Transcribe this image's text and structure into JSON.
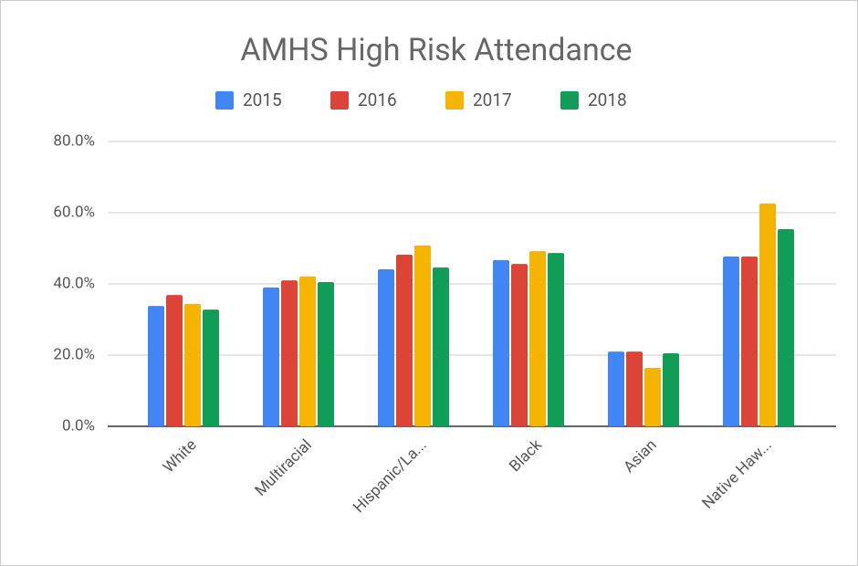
{
  "chart_data": {
    "type": "bar",
    "title": "AMHS High Risk Attendance",
    "categories": [
      "White",
      "Multiracial",
      "Hispanic/La...",
      "Black",
      "Asian",
      "Native Haw..."
    ],
    "series": [
      {
        "name": "2015",
        "color": "#4285f4",
        "values": [
          33.8,
          39.0,
          44.1,
          46.7,
          21.0,
          47.7
        ]
      },
      {
        "name": "2016",
        "color": "#db4437",
        "values": [
          36.9,
          41.0,
          48.2,
          45.6,
          21.0,
          47.7
        ]
      },
      {
        "name": "2017",
        "color": "#f4b400",
        "values": [
          34.4,
          42.1,
          50.8,
          49.2,
          16.4,
          62.6
        ]
      },
      {
        "name": "2018",
        "color": "#0f9d58",
        "values": [
          32.8,
          40.5,
          44.6,
          48.7,
          20.5,
          55.4
        ]
      }
    ],
    "ylim": [
      0,
      80
    ],
    "yticks": [
      {
        "value": 0,
        "label": "0.0%"
      },
      {
        "value": 20,
        "label": "20.0%"
      },
      {
        "value": 40,
        "label": "40.0%"
      },
      {
        "value": 60,
        "label": "60.0%"
      },
      {
        "value": 80,
        "label": "80.0%"
      }
    ],
    "grid": true,
    "legend": "top"
  }
}
